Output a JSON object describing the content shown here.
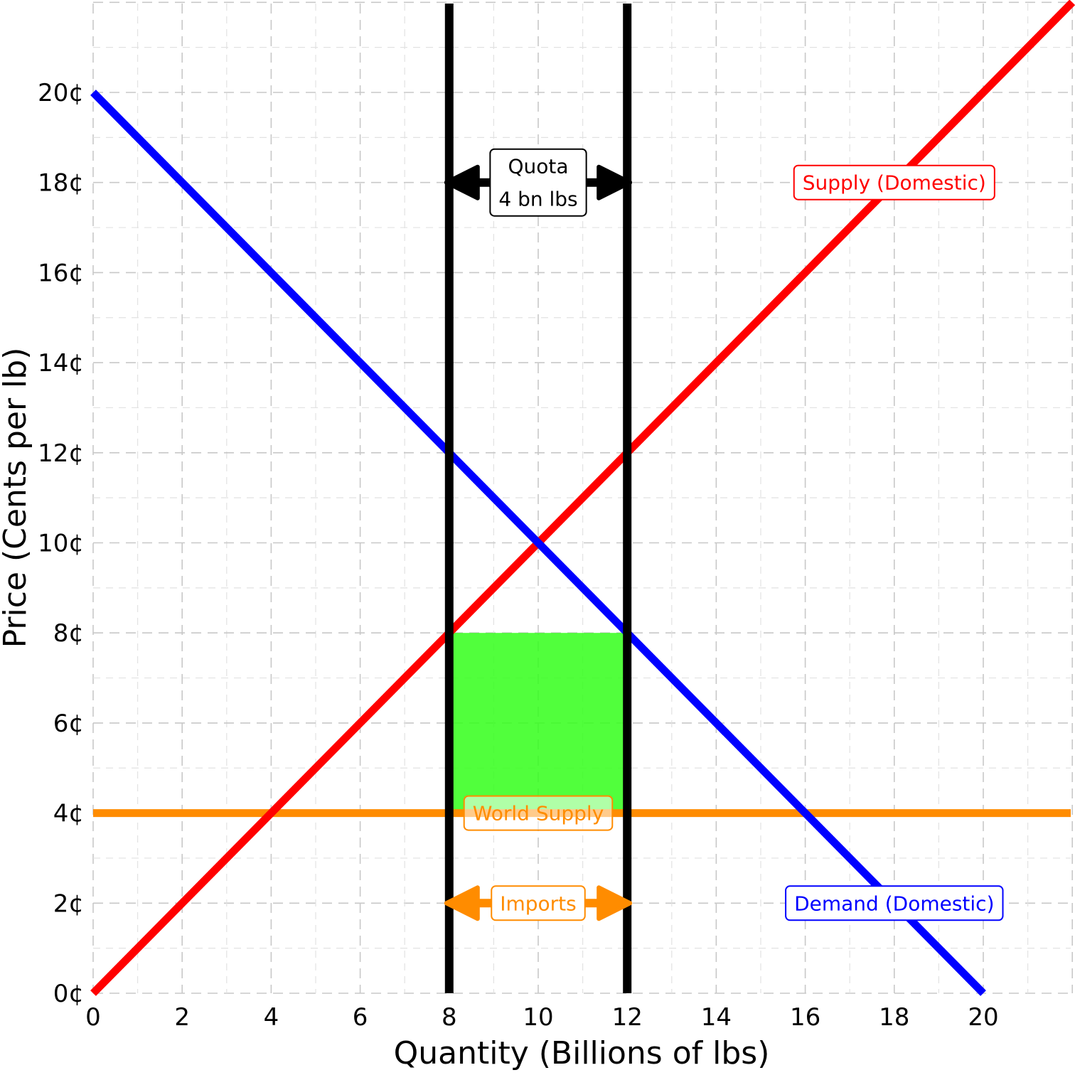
{
  "chart_data": {
    "type": "line",
    "xlabel": "Quantity (Billions of lbs)",
    "ylabel": "Price (Cents per lb)",
    "xlim": [
      0,
      22
    ],
    "ylim": [
      0,
      22
    ],
    "x_ticks": [
      0,
      2,
      4,
      6,
      8,
      10,
      12,
      14,
      16,
      18,
      20
    ],
    "x_tick_labels": [
      "0",
      "2",
      "4",
      "6",
      "8",
      "10",
      "12",
      "14",
      "16",
      "18",
      "20"
    ],
    "y_ticks": [
      0,
      2,
      4,
      6,
      8,
      10,
      12,
      14,
      16,
      18,
      20
    ],
    "y_tick_labels": [
      "0¢",
      "2¢",
      "4¢",
      "6¢",
      "8¢",
      "10¢",
      "12¢",
      "14¢",
      "16¢",
      "18¢",
      "20¢"
    ],
    "grid": true,
    "series": [
      {
        "name": "Supply (Domestic)",
        "color": "#ff0000",
        "x": [
          0,
          22
        ],
        "y": [
          0,
          22
        ]
      },
      {
        "name": "Demand (Domestic)",
        "color": "#0000ff",
        "x": [
          0,
          20
        ],
        "y": [
          20,
          0
        ]
      },
      {
        "name": "World Supply",
        "color": "#ff8c00",
        "x": [
          0,
          22
        ],
        "y": [
          4,
          4
        ]
      }
    ],
    "quota_lines": {
      "color": "#000000",
      "x": [
        8,
        12
      ]
    },
    "shaded_region": {
      "color": "#33ff1a",
      "x": [
        8,
        12
      ],
      "y": [
        4,
        8
      ]
    },
    "annotations": [
      {
        "lines": [
          "Quota",
          "4 bn lbs"
        ],
        "x": 10,
        "y": 18,
        "color": "#000000",
        "arrow": [
          8,
          12
        ]
      },
      {
        "lines": [
          "Imports"
        ],
        "x": 10,
        "y": 2,
        "color": "#ff8c00",
        "arrow": [
          8,
          12
        ]
      },
      {
        "lines": [
          "Supply (Domestic)"
        ],
        "x": 18,
        "y": 18,
        "color": "#ff0000"
      },
      {
        "lines": [
          "Demand (Domestic)"
        ],
        "x": 18,
        "y": 2,
        "color": "#0000ff"
      },
      {
        "lines": [
          "World Supply"
        ],
        "x": 10,
        "y": 4,
        "color": "#ff8c00"
      }
    ]
  }
}
